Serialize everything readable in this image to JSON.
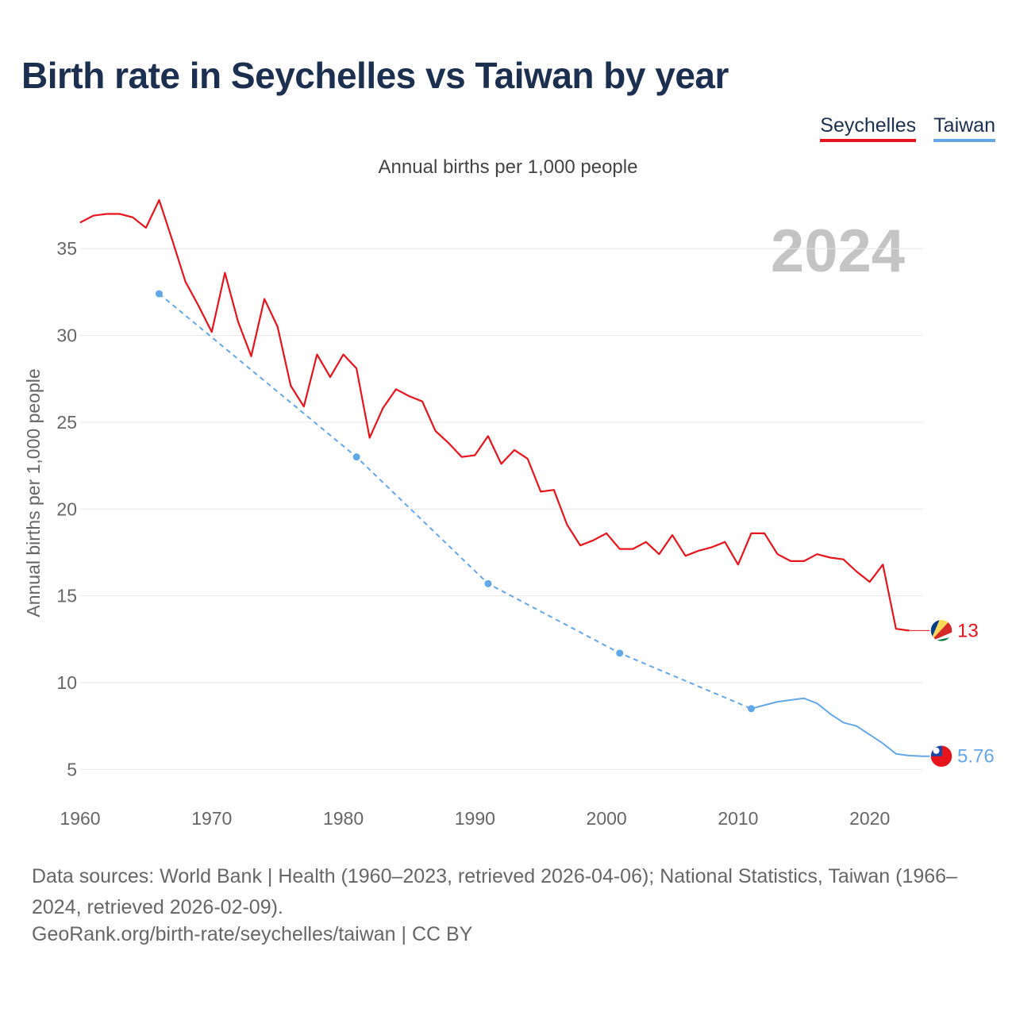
{
  "title": "Birth rate in Seychelles vs Taiwan by year",
  "legend": [
    {
      "label": "Seychelles",
      "color": "#e8141c"
    },
    {
      "label": "Taiwan",
      "color": "#62a8e8"
    }
  ],
  "subtitle": "Annual births per 1,000 people",
  "source_text": "Data sources: World Bank | Health (1960–2023, retrieved 2026-04-06); National Statistics, Taiwan (1966–2024, retrieved 2026-02-09).",
  "credit_text": "GeoRank.org/birth-rate/seychelles/taiwan | CC BY",
  "chart_data": {
    "type": "line",
    "title": "Birth rate in Seychelles vs Taiwan by year",
    "ylabel": "Annual births per 1,000 people",
    "xlabel": "",
    "year_label": "2024",
    "xlim": [
      1960,
      2024
    ],
    "ylim": [
      2.2,
      38
    ],
    "xticks": [
      1960,
      1970,
      1980,
      1990,
      2000,
      2010,
      2020
    ],
    "yticks": [
      5,
      10,
      15,
      20,
      25,
      30,
      35
    ],
    "grid": true,
    "series": [
      {
        "name": "Seychelles",
        "color": "#e8141c",
        "end_label": "13",
        "x": [
          1960,
          1961,
          1962,
          1963,
          1964,
          1965,
          1966,
          1967,
          1968,
          1969,
          1970,
          1971,
          1972,
          1973,
          1974,
          1975,
          1976,
          1977,
          1978,
          1979,
          1980,
          1981,
          1982,
          1983,
          1984,
          1985,
          1986,
          1987,
          1988,
          1989,
          1990,
          1991,
          1992,
          1993,
          1994,
          1995,
          1996,
          1997,
          1998,
          1999,
          2000,
          2001,
          2002,
          2003,
          2004,
          2005,
          2006,
          2007,
          2008,
          2009,
          2010,
          2011,
          2012,
          2013,
          2014,
          2015,
          2016,
          2017,
          2018,
          2019,
          2020,
          2021,
          2022,
          2023,
          2024
        ],
        "values": [
          36.5,
          36.9,
          37.0,
          37.0,
          36.8,
          36.2,
          37.8,
          35.5,
          33.1,
          31.7,
          30.2,
          33.6,
          30.8,
          28.8,
          32.1,
          30.5,
          27.1,
          25.9,
          28.9,
          27.6,
          28.9,
          28.1,
          24.1,
          25.8,
          26.9,
          26.5,
          26.2,
          24.5,
          23.8,
          23.0,
          23.1,
          24.2,
          22.6,
          23.4,
          22.9,
          21.0,
          21.1,
          19.1,
          17.9,
          18.2,
          18.6,
          17.7,
          17.7,
          18.1,
          17.4,
          18.5,
          17.3,
          17.6,
          17.8,
          18.1,
          16.8,
          18.6,
          18.6,
          17.4,
          17.0,
          17.0,
          17.4,
          17.2,
          17.1,
          16.4,
          15.8,
          16.8,
          13.1,
          13.0,
          13.0
        ]
      },
      {
        "name": "Taiwan",
        "color": "#62a8e8",
        "end_label": "5.76",
        "dashed_through": 2011,
        "markers": [
          1966,
          1981,
          1991,
          2001,
          2011
        ],
        "x": [
          1966,
          1981,
          1991,
          2001,
          2011,
          2012,
          2013,
          2014,
          2015,
          2016,
          2017,
          2018,
          2019,
          2020,
          2021,
          2022,
          2023,
          2024
        ],
        "values": [
          32.4,
          23.0,
          15.7,
          11.7,
          8.5,
          8.7,
          8.9,
          9.0,
          9.1,
          8.8,
          8.2,
          7.7,
          7.5,
          7.0,
          6.5,
          5.9,
          5.8,
          5.76
        ]
      }
    ]
  }
}
